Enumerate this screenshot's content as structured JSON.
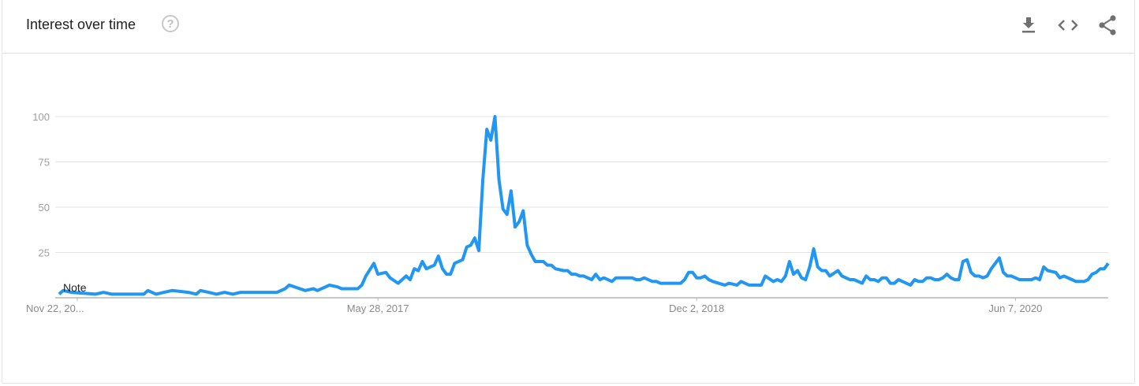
{
  "header": {
    "title": "Interest over time",
    "help_icon": "help-circle-icon",
    "tools": [
      {
        "name": "download-icon",
        "label": "Download"
      },
      {
        "name": "embed-code-icon",
        "label": "Embed"
      },
      {
        "name": "share-icon",
        "label": "Share"
      }
    ]
  },
  "chart_data": {
    "type": "line",
    "title": "",
    "xlabel": "",
    "ylabel": "",
    "ylim": [
      0,
      100
    ],
    "xlim": [
      "2015-11-22",
      "2020-11-15"
    ],
    "yticks": [
      25,
      50,
      75,
      100
    ],
    "ytick_labels": [
      "25",
      "50",
      "75",
      "100"
    ],
    "xticks": [
      {
        "date": "2015-11-22",
        "label": "Nov 22, 20..."
      },
      {
        "date": "2017-05-28",
        "label": "May 28, 2017"
      },
      {
        "date": "2018-12-02",
        "label": "Dec 2, 2018"
      },
      {
        "date": "2020-06-07",
        "label": "Jun 7, 2020"
      }
    ],
    "grid": true,
    "line_color": "#2196f3",
    "annotation": {
      "date": "2015-11-22",
      "label": "Note"
    },
    "series": [
      {
        "x": [
          "2015-11-22",
          "2015-11-29",
          "2015-12-13",
          "2016-01-24",
          "2016-02-07",
          "2016-02-21",
          "2016-04-17",
          "2016-04-24",
          "2016-05-08",
          "2016-05-22",
          "2016-06-05",
          "2016-07-03",
          "2016-07-17",
          "2016-07-24",
          "2016-08-07",
          "2016-08-21",
          "2016-09-04",
          "2016-09-18",
          "2016-10-02",
          "2016-12-04",
          "2016-12-18",
          "2016-12-25",
          "2017-01-22",
          "2017-02-05",
          "2017-02-12",
          "2017-03-05",
          "2017-03-19",
          "2017-03-26",
          "2017-04-23",
          "2017-04-30",
          "2017-05-07",
          "2017-05-21",
          "2017-05-28",
          "2017-06-11",
          "2017-06-18",
          "2017-07-02",
          "2017-07-16",
          "2017-07-23",
          "2017-07-30",
          "2017-08-06",
          "2017-08-13",
          "2017-08-20",
          "2017-09-03",
          "2017-09-10",
          "2017-09-17",
          "2017-09-24",
          "2017-10-01",
          "2017-10-08",
          "2017-10-22",
          "2017-10-29",
          "2017-11-05",
          "2017-11-12",
          "2017-11-19",
          "2017-11-26",
          "2017-12-03",
          "2017-12-10",
          "2017-12-17",
          "2017-12-24",
          "2017-12-31",
          "2018-01-07",
          "2018-01-14",
          "2018-01-21",
          "2018-01-28",
          "2018-02-04",
          "2018-02-11",
          "2018-02-18",
          "2018-02-25",
          "2018-03-11",
          "2018-03-18",
          "2018-03-25",
          "2018-04-01",
          "2018-04-15",
          "2018-04-22",
          "2018-04-29",
          "2018-05-06",
          "2018-05-13",
          "2018-05-20",
          "2018-06-03",
          "2018-06-10",
          "2018-06-17",
          "2018-06-24",
          "2018-07-08",
          "2018-07-15",
          "2018-07-29",
          "2018-08-12",
          "2018-08-19",
          "2018-08-26",
          "2018-09-02",
          "2018-09-16",
          "2018-09-23",
          "2018-09-30",
          "2018-11-04",
          "2018-11-11",
          "2018-11-18",
          "2018-11-25",
          "2018-12-02",
          "2018-12-09",
          "2018-12-16",
          "2018-12-23",
          "2018-12-30",
          "2019-01-20",
          "2019-01-27",
          "2019-02-10",
          "2019-02-17",
          "2019-03-03",
          "2019-03-24",
          "2019-03-31",
          "2019-04-14",
          "2019-04-21",
          "2019-04-28",
          "2019-05-05",
          "2019-05-12",
          "2019-05-19",
          "2019-05-26",
          "2019-06-02",
          "2019-06-09",
          "2019-06-16",
          "2019-06-23",
          "2019-06-30",
          "2019-07-07",
          "2019-07-14",
          "2019-07-21",
          "2019-08-04",
          "2019-08-11",
          "2019-08-25",
          "2019-09-01",
          "2019-09-15",
          "2019-09-22",
          "2019-09-29",
          "2019-10-06",
          "2019-10-13",
          "2019-10-20",
          "2019-10-27",
          "2019-11-03",
          "2019-11-10",
          "2019-11-17",
          "2019-11-24",
          "2019-12-08",
          "2019-12-15",
          "2019-12-22",
          "2019-12-29",
          "2020-01-05",
          "2020-01-12",
          "2020-01-19",
          "2020-01-26",
          "2020-02-02",
          "2020-02-09",
          "2020-02-16",
          "2020-02-23",
          "2020-03-01",
          "2020-03-08",
          "2020-03-15",
          "2020-03-22",
          "2020-03-29",
          "2020-04-05",
          "2020-04-12",
          "2020-04-19",
          "2020-04-26",
          "2020-05-10",
          "2020-05-17",
          "2020-05-24",
          "2020-05-31",
          "2020-06-07",
          "2020-06-14",
          "2020-07-05",
          "2020-07-12",
          "2020-07-19",
          "2020-07-26",
          "2020-08-02",
          "2020-08-16",
          "2020-08-23",
          "2020-08-30",
          "2020-09-13",
          "2020-09-20",
          "2020-10-04",
          "2020-10-11",
          "2020-10-18",
          "2020-10-25",
          "2020-11-01",
          "2020-11-08",
          "2020-11-15"
        ],
        "values": [
          2,
          4,
          3,
          2,
          3,
          2,
          2,
          4,
          2,
          3,
          4,
          3,
          2,
          4,
          3,
          2,
          3,
          2,
          3,
          3,
          5,
          7,
          4,
          5,
          4,
          7,
          6,
          5,
          5,
          7,
          12,
          19,
          13,
          14,
          11,
          8,
          12,
          10,
          16,
          15,
          20,
          16,
          18,
          23,
          16,
          13,
          13,
          19,
          21,
          28,
          29,
          33,
          26,
          65,
          93,
          87,
          100,
          65,
          49,
          46,
          59,
          39,
          42,
          48,
          29,
          24,
          20,
          20,
          18,
          18,
          16,
          15,
          15,
          13,
          13,
          12,
          12,
          10,
          13,
          10,
          11,
          9,
          11,
          11,
          11,
          10,
          10,
          11,
          9,
          9,
          8,
          8,
          10,
          14,
          14,
          11,
          11,
          12,
          10,
          9,
          7,
          8,
          7,
          9,
          7,
          7,
          12,
          9,
          10,
          9,
          12,
          20,
          13,
          15,
          11,
          10,
          17,
          27,
          17,
          15,
          15,
          12,
          15,
          12,
          10,
          10,
          8,
          12,
          10,
          10,
          9,
          11,
          11,
          8,
          8,
          10,
          9,
          7,
          10,
          9,
          9,
          11,
          11,
          10,
          10,
          11,
          13,
          11,
          10,
          10,
          20,
          21,
          14,
          12,
          12,
          11,
          12,
          16,
          22,
          14,
          12,
          12,
          11,
          10,
          10,
          11,
          10,
          17,
          15,
          14,
          11,
          12,
          10,
          9,
          9,
          10,
          13,
          14,
          16,
          16,
          19
        ]
      }
    ]
  }
}
